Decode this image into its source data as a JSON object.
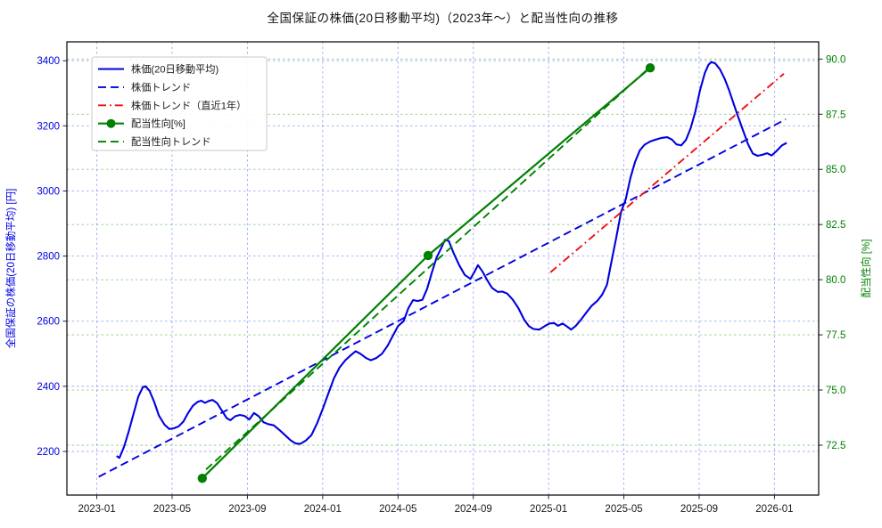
{
  "chart_data": {
    "type": "line",
    "title": "全国保証の株価(20日移動平均)（2023年〜）と配当性向の推移",
    "grid": true,
    "legend_position": "upper-left",
    "x_axis": {
      "unit": "months since 2023-01",
      "range": [
        -1.59,
        38.35
      ],
      "ticks": [
        {
          "t": 0,
          "label": "2023-01"
        },
        {
          "t": 4,
          "label": "2023-05"
        },
        {
          "t": 8,
          "label": "2023-09"
        },
        {
          "t": 12,
          "label": "2024-01"
        },
        {
          "t": 16,
          "label": "2024-05"
        },
        {
          "t": 20,
          "label": "2024-09"
        },
        {
          "t": 24,
          "label": "2025-01"
        },
        {
          "t": 28,
          "label": "2025-05"
        },
        {
          "t": 32,
          "label": "2025-09"
        },
        {
          "t": 36,
          "label": "2026-01"
        }
      ]
    },
    "y_left": {
      "label": "全国保証の株価(20日移動平均) [円]",
      "color": "#0000e0",
      "grid_color": "#5a5aff",
      "range": [
        2066,
        3458
      ],
      "ticks": [
        2200,
        2400,
        2600,
        2800,
        3000,
        3200,
        3400
      ]
    },
    "y_right": {
      "label": "配当性向 [%]",
      "color": "#008000",
      "grid_color": "#2e9e2e",
      "range": [
        70.24,
        90.78
      ],
      "ticks": [
        72.5,
        75.0,
        77.5,
        80.0,
        82.5,
        85.0,
        87.5,
        90.0
      ]
    },
    "series": [
      {
        "key": "price_ma",
        "name": "株価(20日移動平均)",
        "axis": "left",
        "style": "solid",
        "color": "#0000e0",
        "width": 2.1,
        "marker": null,
        "points": [
          [
            1.05,
            2186
          ],
          [
            1.2,
            2180
          ],
          [
            1.45,
            2215
          ],
          [
            1.7,
            2262
          ],
          [
            1.95,
            2315
          ],
          [
            2.2,
            2368
          ],
          [
            2.45,
            2398
          ],
          [
            2.6,
            2400
          ],
          [
            2.8,
            2386
          ],
          [
            3.05,
            2352
          ],
          [
            3.3,
            2310
          ],
          [
            3.6,
            2282
          ],
          [
            3.85,
            2269
          ],
          [
            4.1,
            2271
          ],
          [
            4.35,
            2277
          ],
          [
            4.6,
            2292
          ],
          [
            4.85,
            2318
          ],
          [
            5.1,
            2340
          ],
          [
            5.35,
            2352
          ],
          [
            5.55,
            2356
          ],
          [
            5.75,
            2349
          ],
          [
            5.95,
            2355
          ],
          [
            6.15,
            2358
          ],
          [
            6.4,
            2348
          ],
          [
            6.65,
            2325
          ],
          [
            6.9,
            2302
          ],
          [
            7.1,
            2296
          ],
          [
            7.35,
            2308
          ],
          [
            7.6,
            2312
          ],
          [
            7.85,
            2309
          ],
          [
            8.1,
            2298
          ],
          [
            8.35,
            2318
          ],
          [
            8.6,
            2308
          ],
          [
            8.85,
            2290
          ],
          [
            9.1,
            2284
          ],
          [
            9.4,
            2280
          ],
          [
            9.7,
            2266
          ],
          [
            10.0,
            2250
          ],
          [
            10.3,
            2234
          ],
          [
            10.55,
            2225
          ],
          [
            10.8,
            2223
          ],
          [
            11.1,
            2233
          ],
          [
            11.4,
            2250
          ],
          [
            11.7,
            2286
          ],
          [
            12.0,
            2330
          ],
          [
            12.3,
            2378
          ],
          [
            12.6,
            2425
          ],
          [
            12.9,
            2458
          ],
          [
            13.2,
            2480
          ],
          [
            13.5,
            2496
          ],
          [
            13.75,
            2508
          ],
          [
            14.0,
            2500
          ],
          [
            14.3,
            2487
          ],
          [
            14.55,
            2480
          ],
          [
            14.85,
            2487
          ],
          [
            15.15,
            2500
          ],
          [
            15.45,
            2525
          ],
          [
            15.75,
            2558
          ],
          [
            16.0,
            2585
          ],
          [
            16.3,
            2600
          ],
          [
            16.55,
            2640
          ],
          [
            16.8,
            2665
          ],
          [
            17.05,
            2662
          ],
          [
            17.3,
            2666
          ],
          [
            17.55,
            2700
          ],
          [
            17.8,
            2750
          ],
          [
            18.05,
            2795
          ],
          [
            18.3,
            2825
          ],
          [
            18.5,
            2850
          ],
          [
            18.7,
            2846
          ],
          [
            18.95,
            2810
          ],
          [
            19.25,
            2772
          ],
          [
            19.55,
            2742
          ],
          [
            19.85,
            2730
          ],
          [
            20.05,
            2750
          ],
          [
            20.25,
            2772
          ],
          [
            20.5,
            2752
          ],
          [
            20.75,
            2725
          ],
          [
            21.0,
            2702
          ],
          [
            21.3,
            2690
          ],
          [
            21.55,
            2691
          ],
          [
            21.8,
            2685
          ],
          [
            22.1,
            2666
          ],
          [
            22.4,
            2640
          ],
          [
            22.7,
            2605
          ],
          [
            22.95,
            2585
          ],
          [
            23.2,
            2576
          ],
          [
            23.5,
            2574
          ],
          [
            23.8,
            2585
          ],
          [
            24.05,
            2593
          ],
          [
            24.3,
            2594
          ],
          [
            24.5,
            2586
          ],
          [
            24.75,
            2593
          ],
          [
            25.0,
            2583
          ],
          [
            25.2,
            2574
          ],
          [
            25.45,
            2586
          ],
          [
            25.7,
            2603
          ],
          [
            26.0,
            2626
          ],
          [
            26.3,
            2648
          ],
          [
            26.6,
            2663
          ],
          [
            26.85,
            2682
          ],
          [
            27.1,
            2712
          ],
          [
            27.35,
            2785
          ],
          [
            27.6,
            2858
          ],
          [
            27.85,
            2935
          ],
          [
            28.1,
            2975
          ],
          [
            28.35,
            3040
          ],
          [
            28.6,
            3090
          ],
          [
            28.85,
            3125
          ],
          [
            29.1,
            3142
          ],
          [
            29.4,
            3152
          ],
          [
            29.7,
            3158
          ],
          [
            30.0,
            3163
          ],
          [
            30.3,
            3165
          ],
          [
            30.55,
            3158
          ],
          [
            30.8,
            3143
          ],
          [
            31.05,
            3140
          ],
          [
            31.3,
            3157
          ],
          [
            31.55,
            3193
          ],
          [
            31.8,
            3245
          ],
          [
            32.05,
            3310
          ],
          [
            32.3,
            3362
          ],
          [
            32.5,
            3388
          ],
          [
            32.65,
            3396
          ],
          [
            32.85,
            3392
          ],
          [
            33.1,
            3374
          ],
          [
            33.35,
            3345
          ],
          [
            33.6,
            3308
          ],
          [
            33.85,
            3265
          ],
          [
            34.1,
            3223
          ],
          [
            34.35,
            3183
          ],
          [
            34.6,
            3143
          ],
          [
            34.85,
            3115
          ],
          [
            35.1,
            3108
          ],
          [
            35.35,
            3111
          ],
          [
            35.6,
            3116
          ],
          [
            35.85,
            3109
          ],
          [
            36.1,
            3122
          ],
          [
            36.4,
            3140
          ],
          [
            36.65,
            3148
          ]
        ]
      },
      {
        "key": "price_trend",
        "name": "株価トレンド",
        "axis": "left",
        "style": "dashed",
        "color": "#0000e0",
        "width": 1.9,
        "marker": null,
        "points": [
          [
            0.1,
            2122
          ],
          [
            36.6,
            3220
          ]
        ]
      },
      {
        "key": "price_trend_recent",
        "name": "株価トレンド（直近1年）",
        "axis": "left",
        "style": "dashdot",
        "color": "#ee1111",
        "width": 1.9,
        "marker": null,
        "points": [
          [
            24.1,
            2750
          ],
          [
            36.5,
            3360
          ]
        ]
      },
      {
        "key": "payout_ratio",
        "name": "配当性向[%]",
        "axis": "right",
        "style": "solid",
        "color": "#008000",
        "width": 2.2,
        "marker": "circle",
        "points": [
          [
            5.6,
            71.0
          ],
          [
            17.6,
            81.1
          ],
          [
            29.4,
            89.6
          ]
        ]
      },
      {
        "key": "payout_trend",
        "name": "配当性向トレンド",
        "axis": "right",
        "style": "dashed",
        "color": "#008000",
        "width": 1.9,
        "marker": null,
        "points": [
          [
            5.8,
            71.4
          ],
          [
            29.4,
            89.65
          ]
        ]
      }
    ]
  }
}
